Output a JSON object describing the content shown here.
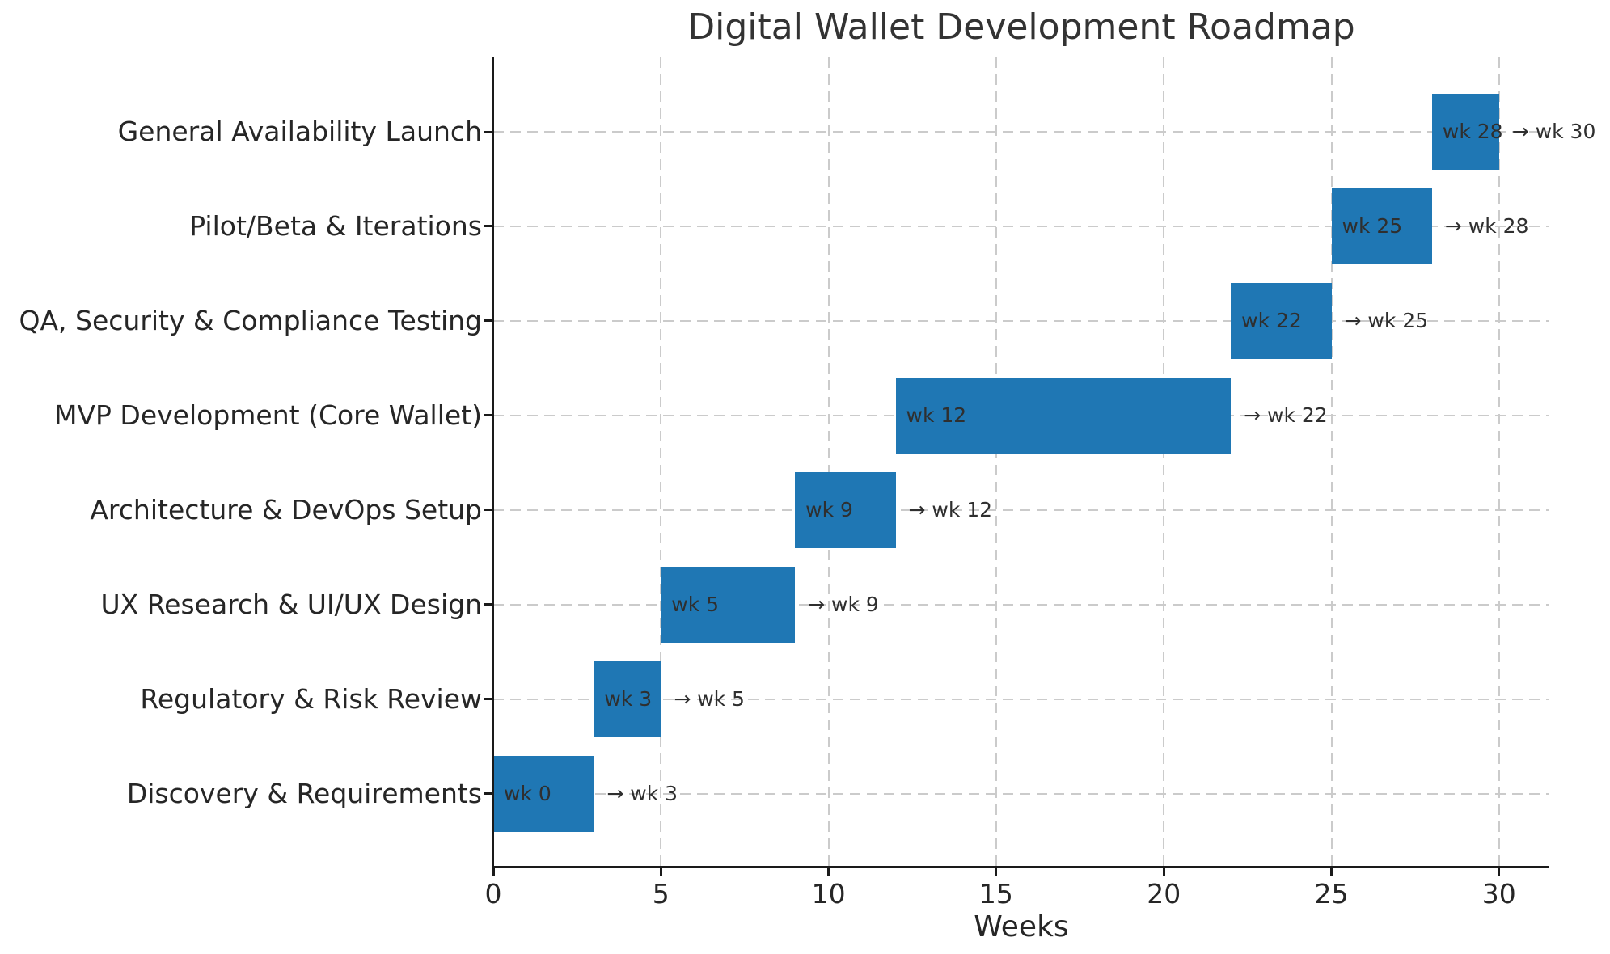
{
  "title": "Digital Wallet Development Roadmap",
  "xlabel": "Weeks",
  "colors": {
    "bar": "#1f77b4",
    "grid": "#cbcbcb",
    "spine": "#1a1a1a",
    "text": "#262626",
    "annotation_text": "#2f2f2f",
    "title_text": "#333333",
    "background": "#ffffff"
  },
  "chart_data": {
    "type": "bar",
    "subtype": "gantt-horizontal",
    "title": "Digital Wallet Development Roadmap",
    "xlabel": "Weeks",
    "ylabel": "",
    "xlim": [
      0,
      31.5
    ],
    "xticks": [
      0,
      5,
      10,
      15,
      20,
      25,
      30
    ],
    "grid": true,
    "grid_style": "dashed",
    "legend": "none",
    "bar_color": "#1f77b4",
    "tasks": [
      {
        "label": "Discovery & Requirements",
        "start_week": 0,
        "end_week": 3,
        "start_label": "wk 0",
        "end_label": "→ wk 3"
      },
      {
        "label": "Regulatory & Risk Review",
        "start_week": 3,
        "end_week": 5,
        "start_label": "wk 3",
        "end_label": "→ wk 5"
      },
      {
        "label": "UX Research & UI/UX Design",
        "start_week": 5,
        "end_week": 9,
        "start_label": "wk 5",
        "end_label": "→ wk 9"
      },
      {
        "label": "Architecture & DevOps Setup",
        "start_week": 9,
        "end_week": 12,
        "start_label": "wk 9",
        "end_label": "→ wk 12"
      },
      {
        "label": "MVP Development (Core Wallet)",
        "start_week": 12,
        "end_week": 22,
        "start_label": "wk 12",
        "end_label": "→ wk 22"
      },
      {
        "label": "QA, Security & Compliance Testing",
        "start_week": 22,
        "end_week": 25,
        "start_label": "wk 22",
        "end_label": "→ wk 25"
      },
      {
        "label": "Pilot/Beta & Iterations",
        "start_week": 25,
        "end_week": 28,
        "start_label": "wk 25",
        "end_label": "→ wk 28"
      },
      {
        "label": "General Availability Launch",
        "start_week": 28,
        "end_week": 30,
        "start_label": "wk 28",
        "end_label": "→ wk 30"
      }
    ],
    "y_order_note": "tasks listed chronologically; rendered bottom-to-top"
  }
}
